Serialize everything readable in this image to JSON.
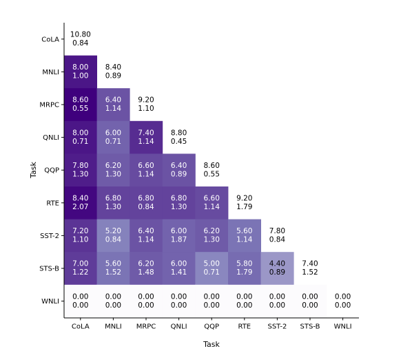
{
  "chart_data": {
    "type": "heatmap",
    "title": "",
    "xlabel": "Task",
    "ylabel": "Task",
    "tasks": [
      "CoLA",
      "MNLI",
      "MRPC",
      "QNLI",
      "QQP",
      "RTE",
      "SST-2",
      "STS-B",
      "WNLI"
    ],
    "cells": [
      {
        "row": "CoLA",
        "col": "CoLA",
        "mean": "10.80",
        "std": "0.84",
        "shaded": false
      },
      {
        "row": "MNLI",
        "col": "CoLA",
        "mean": "8.00",
        "std": "1.00",
        "shaded": true
      },
      {
        "row": "MNLI",
        "col": "MNLI",
        "mean": "8.40",
        "std": "0.89",
        "shaded": false
      },
      {
        "row": "MRPC",
        "col": "CoLA",
        "mean": "8.60",
        "std": "0.55",
        "shaded": true
      },
      {
        "row": "MRPC",
        "col": "MNLI",
        "mean": "6.40",
        "std": "1.14",
        "shaded": true
      },
      {
        "row": "MRPC",
        "col": "MRPC",
        "mean": "9.20",
        "std": "1.10",
        "shaded": false
      },
      {
        "row": "QNLI",
        "col": "CoLA",
        "mean": "8.00",
        "std": "0.71",
        "shaded": true
      },
      {
        "row": "QNLI",
        "col": "MNLI",
        "mean": "6.00",
        "std": "0.71",
        "shaded": true
      },
      {
        "row": "QNLI",
        "col": "MRPC",
        "mean": "7.40",
        "std": "1.14",
        "shaded": true
      },
      {
        "row": "QNLI",
        "col": "QNLI",
        "mean": "8.80",
        "std": "0.45",
        "shaded": false
      },
      {
        "row": "QQP",
        "col": "CoLA",
        "mean": "7.80",
        "std": "1.30",
        "shaded": true
      },
      {
        "row": "QQP",
        "col": "MNLI",
        "mean": "6.20",
        "std": "1.30",
        "shaded": true
      },
      {
        "row": "QQP",
        "col": "MRPC",
        "mean": "6.60",
        "std": "1.14",
        "shaded": true
      },
      {
        "row": "QQP",
        "col": "QNLI",
        "mean": "6.40",
        "std": "0.89",
        "shaded": true
      },
      {
        "row": "QQP",
        "col": "QQP",
        "mean": "8.60",
        "std": "0.55",
        "shaded": false
      },
      {
        "row": "RTE",
        "col": "CoLA",
        "mean": "8.40",
        "std": "2.07",
        "shaded": true
      },
      {
        "row": "RTE",
        "col": "MNLI",
        "mean": "6.80",
        "std": "1.30",
        "shaded": true
      },
      {
        "row": "RTE",
        "col": "MRPC",
        "mean": "6.80",
        "std": "0.84",
        "shaded": true
      },
      {
        "row": "RTE",
        "col": "QNLI",
        "mean": "6.80",
        "std": "1.30",
        "shaded": true
      },
      {
        "row": "RTE",
        "col": "QQP",
        "mean": "6.60",
        "std": "1.14",
        "shaded": true
      },
      {
        "row": "RTE",
        "col": "RTE",
        "mean": "9.20",
        "std": "1.79",
        "shaded": false
      },
      {
        "row": "SST-2",
        "col": "CoLA",
        "mean": "7.20",
        "std": "1.10",
        "shaded": true
      },
      {
        "row": "SST-2",
        "col": "MNLI",
        "mean": "5.20",
        "std": "0.84",
        "shaded": true
      },
      {
        "row": "SST-2",
        "col": "MRPC",
        "mean": "6.40",
        "std": "1.14",
        "shaded": true
      },
      {
        "row": "SST-2",
        "col": "QNLI",
        "mean": "6.00",
        "std": "1.87",
        "shaded": true
      },
      {
        "row": "SST-2",
        "col": "QQP",
        "mean": "6.20",
        "std": "1.30",
        "shaded": true
      },
      {
        "row": "SST-2",
        "col": "RTE",
        "mean": "5.60",
        "std": "1.14",
        "shaded": true
      },
      {
        "row": "SST-2",
        "col": "SST-2",
        "mean": "7.80",
        "std": "0.84",
        "shaded": false
      },
      {
        "row": "STS-B",
        "col": "CoLA",
        "mean": "7.00",
        "std": "1.22",
        "shaded": true
      },
      {
        "row": "STS-B",
        "col": "MNLI",
        "mean": "5.60",
        "std": "1.52",
        "shaded": true
      },
      {
        "row": "STS-B",
        "col": "MRPC",
        "mean": "6.20",
        "std": "1.48",
        "shaded": true
      },
      {
        "row": "STS-B",
        "col": "QNLI",
        "mean": "6.00",
        "std": "1.41",
        "shaded": true
      },
      {
        "row": "STS-B",
        "col": "QQP",
        "mean": "5.00",
        "std": "0.71",
        "shaded": true
      },
      {
        "row": "STS-B",
        "col": "RTE",
        "mean": "5.80",
        "std": "1.79",
        "shaded": true
      },
      {
        "row": "STS-B",
        "col": "SST-2",
        "mean": "4.40",
        "std": "0.89",
        "shaded": true
      },
      {
        "row": "STS-B",
        "col": "STS-B",
        "mean": "7.40",
        "std": "1.52",
        "shaded": false
      },
      {
        "row": "WNLI",
        "col": "CoLA",
        "mean": "0.00",
        "std": "0.00",
        "shaded": true
      },
      {
        "row": "WNLI",
        "col": "MNLI",
        "mean": "0.00",
        "std": "0.00",
        "shaded": true
      },
      {
        "row": "WNLI",
        "col": "MRPC",
        "mean": "0.00",
        "std": "0.00",
        "shaded": true
      },
      {
        "row": "WNLI",
        "col": "QNLI",
        "mean": "0.00",
        "std": "0.00",
        "shaded": true
      },
      {
        "row": "WNLI",
        "col": "QQP",
        "mean": "0.00",
        "std": "0.00",
        "shaded": true
      },
      {
        "row": "WNLI",
        "col": "RTE",
        "mean": "0.00",
        "std": "0.00",
        "shaded": true
      },
      {
        "row": "WNLI",
        "col": "SST-2",
        "mean": "0.00",
        "std": "0.00",
        "shaded": true
      },
      {
        "row": "WNLI",
        "col": "STS-B",
        "mean": "0.00",
        "std": "0.00",
        "shaded": true
      },
      {
        "row": "WNLI",
        "col": "WNLI",
        "mean": "0.00",
        "std": "0.00",
        "shaded": false
      }
    ],
    "colormap": "Purples",
    "color_range": [
      0,
      8.6
    ],
    "grid": false
  }
}
